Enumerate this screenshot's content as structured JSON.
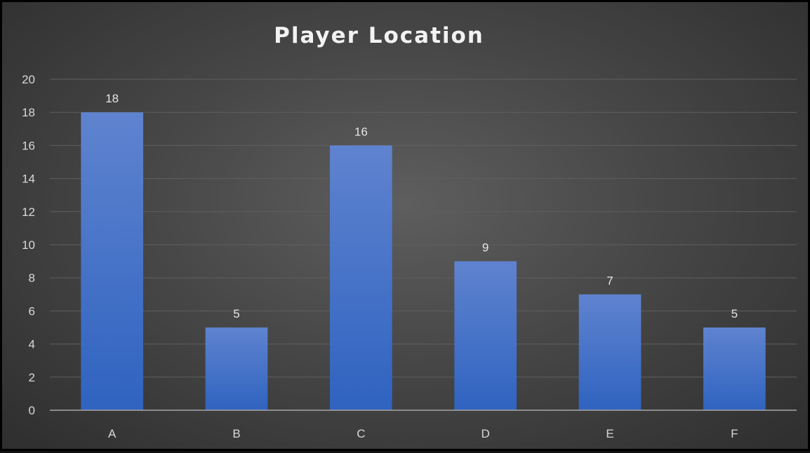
{
  "chart_data": {
    "type": "bar",
    "title": "Player Location",
    "categories": [
      "A",
      "B",
      "C",
      "D",
      "E",
      "F"
    ],
    "values": [
      18,
      5,
      16,
      9,
      7,
      5
    ],
    "ylim": [
      0,
      20
    ],
    "yticks": [
      0,
      2,
      4,
      6,
      8,
      10,
      12,
      14,
      16,
      18,
      20
    ],
    "grid": true,
    "data_labels": true,
    "legend": "none",
    "colors": {
      "bar_top": "#5f83cf",
      "bar_bottom": "#2f63c0",
      "background": "#474747",
      "text": "#d9d9d9"
    }
  }
}
